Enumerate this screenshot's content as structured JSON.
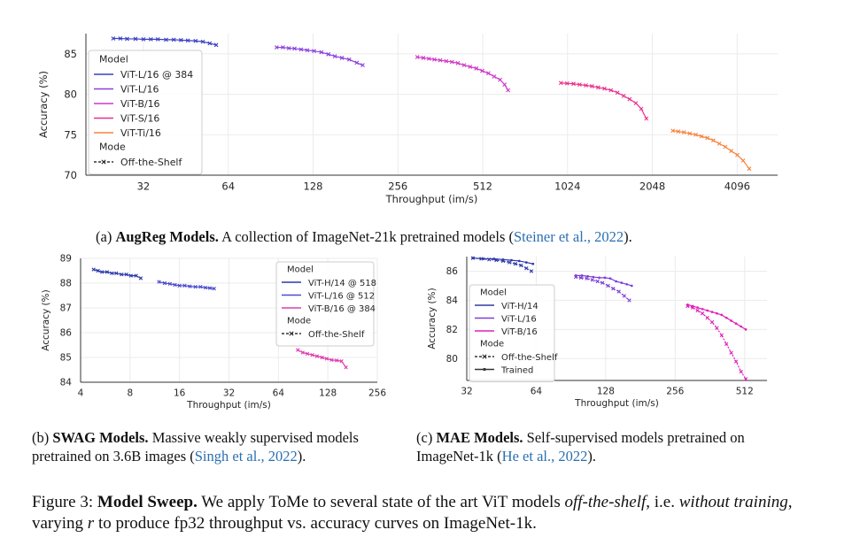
{
  "chart_data": [
    {
      "id": "augreg",
      "type": "line",
      "xlabel": "Throughput (im/s)",
      "ylabel": "Accuracy (%)",
      "xscale": "log2",
      "xlim": [
        20,
        5700
      ],
      "ylim": [
        70,
        87.5
      ],
      "xticks": [
        32,
        64,
        128,
        256,
        512,
        1024,
        2048,
        4096
      ],
      "yticks": [
        70,
        75,
        80,
        85
      ],
      "grid": true,
      "legend": {
        "placement": "top-left",
        "title_model": "Model",
        "title_mode": "Mode",
        "modes": [
          {
            "name": "Off-the-Shelf",
            "marker": "x"
          }
        ]
      },
      "series": [
        {
          "name": "ViT-L/16 @ 384",
          "color": "#3a3fc2",
          "marker": "x",
          "points": [
            [
              25,
              86.9
            ],
            [
              26.5,
              86.9
            ],
            [
              28,
              86.85
            ],
            [
              30,
              86.85
            ],
            [
              32,
              86.8
            ],
            [
              34,
              86.8
            ],
            [
              36,
              86.8
            ],
            [
              38.5,
              86.75
            ],
            [
              41,
              86.75
            ],
            [
              43.5,
              86.7
            ],
            [
              46,
              86.65
            ],
            [
              49,
              86.6
            ],
            [
              52,
              86.5
            ],
            [
              55,
              86.3
            ],
            [
              58,
              86.1
            ]
          ]
        },
        {
          "name": "ViT-L/16",
          "color": "#8a3fe0",
          "marker": "x",
          "points": [
            [
              95,
              85.8
            ],
            [
              100,
              85.8
            ],
            [
              105,
              85.7
            ],
            [
              110,
              85.65
            ],
            [
              116,
              85.55
            ],
            [
              122,
              85.45
            ],
            [
              129,
              85.35
            ],
            [
              137,
              85.2
            ],
            [
              145,
              84.95
            ],
            [
              153,
              84.7
            ],
            [
              162,
              84.5
            ],
            [
              172,
              84.3
            ],
            [
              183,
              83.9
            ],
            [
              192,
              83.6
            ]
          ]
        },
        {
          "name": "ViT-B/16",
          "color": "#d136c8",
          "marker": "x",
          "points": [
            [
              300,
              84.6
            ],
            [
              315,
              84.5
            ],
            [
              330,
              84.4
            ],
            [
              345,
              84.3
            ],
            [
              362,
              84.2
            ],
            [
              380,
              84.1
            ],
            [
              398,
              84.0
            ],
            [
              418,
              83.85
            ],
            [
              440,
              83.6
            ],
            [
              462,
              83.4
            ],
            [
              486,
              83.2
            ],
            [
              510,
              82.9
            ],
            [
              536,
              82.6
            ],
            [
              562,
              82.2
            ],
            [
              590,
              81.8
            ],
            [
              612,
              81.2
            ],
            [
              630,
              80.5
            ]
          ]
        },
        {
          "name": "ViT-S/16",
          "color": "#ec2f8e",
          "marker": "x",
          "points": [
            [
              970,
              81.4
            ],
            [
              1020,
              81.35
            ],
            [
              1075,
              81.3
            ],
            [
              1130,
              81.2
            ],
            [
              1190,
              81.1
            ],
            [
              1250,
              81.0
            ],
            [
              1315,
              80.85
            ],
            [
              1385,
              80.7
            ],
            [
              1460,
              80.5
            ],
            [
              1540,
              80.2
            ],
            [
              1620,
              79.8
            ],
            [
              1700,
              79.4
            ],
            [
              1790,
              78.9
            ],
            [
              1870,
              78.2
            ],
            [
              1950,
              77.0
            ]
          ]
        },
        {
          "name": "ViT-Ti/16",
          "color": "#f7823d",
          "marker": "x",
          "points": [
            [
              2420,
              75.5
            ],
            [
              2530,
              75.4
            ],
            [
              2650,
              75.3
            ],
            [
              2780,
              75.15
            ],
            [
              2920,
              75.0
            ],
            [
              3060,
              74.8
            ],
            [
              3210,
              74.6
            ],
            [
              3370,
              74.3
            ],
            [
              3540,
              73.9
            ],
            [
              3720,
              73.5
            ],
            [
              3900,
              73.0
            ],
            [
              4100,
              72.5
            ],
            [
              4300,
              71.8
            ],
            [
              4520,
              70.8
            ]
          ]
        }
      ]
    },
    {
      "id": "swag",
      "type": "line",
      "xlabel": "Throughput (im/s)",
      "ylabel": "Accuracy (%)",
      "xscale": "log2",
      "xlim": [
        4,
        256
      ],
      "ylim": [
        84,
        89
      ],
      "xticks": [
        4,
        8,
        16,
        32,
        64,
        128,
        256
      ],
      "yticks": [
        84,
        85,
        86,
        87,
        88,
        89
      ],
      "grid": true,
      "legend": {
        "placement": "top-right",
        "title_model": "Model",
        "title_mode": "Mode",
        "modes": [
          {
            "name": "Off-the-Shelf",
            "marker": "x"
          }
        ]
      },
      "series": [
        {
          "name": "ViT-H/14 @ 518",
          "color": "#2e3aa8",
          "marker": "x",
          "points": [
            [
              4.8,
              88.55
            ],
            [
              5.1,
              88.5
            ],
            [
              5.4,
              88.45
            ],
            [
              5.8,
              88.45
            ],
            [
              6.2,
              88.4
            ],
            [
              6.6,
              88.4
            ],
            [
              7.1,
              88.35
            ],
            [
              7.6,
              88.35
            ],
            [
              8.1,
              88.3
            ],
            [
              8.7,
              88.3
            ],
            [
              9.3,
              88.2
            ]
          ]
        },
        {
          "name": "ViT-L/16 @ 512",
          "color": "#4a4ad0",
          "marker": "x",
          "points": [
            [
              12,
              88.05
            ],
            [
              13,
              88.0
            ],
            [
              14,
              87.97
            ],
            [
              15,
              87.93
            ],
            [
              16,
              87.9
            ],
            [
              17.2,
              87.9
            ],
            [
              18.5,
              87.87
            ],
            [
              20,
              87.85
            ],
            [
              21.5,
              87.85
            ],
            [
              23,
              87.82
            ],
            [
              24.5,
              87.8
            ],
            [
              26,
              87.78
            ]
          ]
        },
        {
          "name": "ViT-B/16 @ 384",
          "color": "#e03bb0",
          "marker": "x",
          "points": [
            [
              84,
              85.3
            ],
            [
              90,
              85.2
            ],
            [
              96,
              85.15
            ],
            [
              103,
              85.1
            ],
            [
              110,
              85.05
            ],
            [
              118,
              85.0
            ],
            [
              126,
              84.95
            ],
            [
              135,
              84.9
            ],
            [
              145,
              84.88
            ],
            [
              155,
              84.85
            ],
            [
              165,
              84.6
            ]
          ]
        }
      ]
    },
    {
      "id": "mae",
      "type": "line",
      "xlabel": "Throughput (im/s)",
      "ylabel": "Accuracy (%)",
      "xscale": "log2",
      "xlim": [
        32,
        640
      ],
      "ylim": [
        78.5,
        87
      ],
      "xticks": [
        32,
        64,
        128,
        256,
        512
      ],
      "yticks": [
        80,
        82,
        84,
        86
      ],
      "grid": true,
      "legend": {
        "placement": "bottom-left",
        "title_model": "Model",
        "title_mode": "Mode",
        "modes": [
          {
            "name": "Off-the-Shelf",
            "marker": "x"
          },
          {
            "name": "Trained",
            "marker": "o"
          }
        ]
      },
      "series": [
        {
          "name": "ViT-H/14",
          "color": "#2e3aa8",
          "mode": "Off-the-Shelf",
          "marker": "x",
          "points": [
            [
              34,
              86.9
            ],
            [
              37,
              86.85
            ],
            [
              40,
              86.8
            ],
            [
              43,
              86.75
            ],
            [
              46,
              86.7
            ],
            [
              49,
              86.6
            ],
            [
              52,
              86.5
            ],
            [
              55,
              86.4
            ],
            [
              58,
              86.2
            ],
            [
              61,
              86.0
            ]
          ]
        },
        {
          "name": "ViT-H/14",
          "color": "#2e3aa8",
          "mode": "Trained",
          "marker": "o",
          "points": [
            [
              34,
              86.9
            ],
            [
              38,
              86.85
            ],
            [
              42,
              86.85
            ],
            [
              46,
              86.8
            ],
            [
              50,
              86.75
            ],
            [
              54,
              86.7
            ],
            [
              58,
              86.6
            ],
            [
              62,
              86.5
            ]
          ]
        },
        {
          "name": "ViT-L/16",
          "color": "#7d3ed8",
          "mode": "Off-the-Shelf",
          "marker": "x",
          "points": [
            [
              95,
              85.6
            ],
            [
              100,
              85.55
            ],
            [
              106,
              85.5
            ],
            [
              112,
              85.4
            ],
            [
              118,
              85.3
            ],
            [
              124,
              85.2
            ],
            [
              131,
              85.0
            ],
            [
              138,
              84.8
            ],
            [
              146,
              84.6
            ],
            [
              154,
              84.3
            ],
            [
              162,
              84.0
            ]
          ]
        },
        {
          "name": "ViT-L/16",
          "color": "#7d3ed8",
          "mode": "Trained",
          "marker": "o",
          "points": [
            [
              95,
              85.7
            ],
            [
              101,
              85.7
            ],
            [
              107,
              85.65
            ],
            [
              113,
              85.6
            ],
            [
              120,
              85.55
            ],
            [
              127,
              85.55
            ],
            [
              134,
              85.5
            ],
            [
              142,
              85.3
            ],
            [
              150,
              85.2
            ],
            [
              158,
              85.1
            ],
            [
              166,
              85.0
            ]
          ]
        },
        {
          "name": "ViT-B/16",
          "color": "#e020b8",
          "mode": "Off-the-Shelf",
          "marker": "x",
          "points": [
            [
              290,
              83.6
            ],
            [
              305,
              83.5
            ],
            [
              320,
              83.3
            ],
            [
              336,
              83.1
            ],
            [
              353,
              82.8
            ],
            [
              370,
              82.5
            ],
            [
              388,
              82.1
            ],
            [
              407,
              81.6
            ],
            [
              427,
              81.0
            ],
            [
              448,
              80.4
            ],
            [
              470,
              79.8
            ],
            [
              494,
              79.1
            ],
            [
              518,
              78.6
            ]
          ]
        },
        {
          "name": "ViT-B/16",
          "color": "#e020b8",
          "mode": "Trained",
          "marker": "o",
          "points": [
            [
              290,
              83.7
            ],
            [
              305,
              83.6
            ],
            [
              320,
              83.5
            ],
            [
              336,
              83.4
            ],
            [
              353,
              83.3
            ],
            [
              370,
              83.2
            ],
            [
              388,
              83.1
            ],
            [
              407,
              83.0
            ],
            [
              427,
              82.8
            ],
            [
              448,
              82.6
            ],
            [
              470,
              82.4
            ],
            [
              494,
              82.2
            ],
            [
              518,
              82.0
            ]
          ]
        }
      ]
    }
  ],
  "captions": {
    "a": {
      "tag": "(a)",
      "bold": "AugReg Models.",
      "text": "A collection of ImageNet-21k pretrained models (",
      "cite": "Steiner et al., 2022",
      "end": ")."
    },
    "b": {
      "tag": "(b)",
      "bold": "SWAG Models.",
      "text": "Massive weakly supervised models pretrained on 3.6B images (",
      "cite": "Singh et al., 2022",
      "end": ")."
    },
    "c": {
      "tag": "(c)",
      "bold": "MAE Models.",
      "text": "Self-supervised models pretrained on ImageNet-1k (",
      "cite": "He et al., 2022",
      "end": ")."
    }
  },
  "figure_caption": {
    "label": "Figure 3:",
    "bold": "Model Sweep.",
    "part1": "We apply ToMe to several state of the art ViT models",
    "ital1": "off-the-shelf",
    "part2": ", i.e.",
    "ital2": "without training",
    "part3": ", varying",
    "ital3": "r",
    "part4": "to produce fp32 throughput vs. accuracy curves on ImageNet-1k."
  }
}
